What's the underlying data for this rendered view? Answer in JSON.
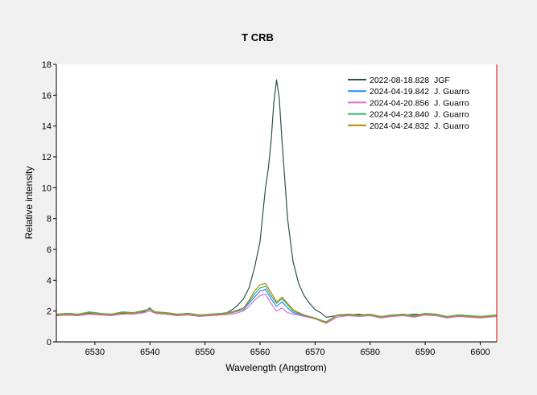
{
  "chart_data": {
    "type": "line",
    "title": "T CRB",
    "xlabel": "Wavelength (Angstrom)",
    "ylabel": "Relative intensity",
    "xlim": [
      6523,
      6603
    ],
    "ylim": [
      0,
      18
    ],
    "xticks": [
      6530,
      6540,
      6550,
      6560,
      6570,
      6580,
      6590,
      6600
    ],
    "yticks": [
      0,
      2,
      4,
      6,
      8,
      10,
      12,
      14,
      16,
      18
    ],
    "grid": false,
    "legend_position": "top-right",
    "series": [
      {
        "name": "2022-08-18.828  JGF",
        "color": "#2f4f4f",
        "x": [
          6523,
          6525,
          6527,
          6529,
          6531,
          6533,
          6535,
          6537,
          6539,
          6540,
          6541,
          6543,
          6545,
          6547,
          6549,
          6551,
          6553,
          6554,
          6555,
          6556,
          6557,
          6558,
          6559,
          6560,
          6560.5,
          6561,
          6561.5,
          6562,
          6562.5,
          6563,
          6563.5,
          6564,
          6564.5,
          6565,
          6566,
          6567,
          6568,
          6569,
          6570,
          6571,
          6572,
          6574,
          6576,
          6578,
          6580,
          6582,
          6584,
          6586,
          6588,
          6590,
          6592,
          6594,
          6596,
          6598,
          6600,
          6603
        ],
        "y": [
          1.7,
          1.75,
          1.7,
          1.85,
          1.75,
          1.8,
          1.85,
          1.9,
          1.95,
          2.2,
          1.85,
          1.8,
          1.7,
          1.8,
          1.75,
          1.7,
          1.8,
          1.9,
          2.1,
          2.4,
          2.8,
          3.5,
          4.8,
          6.5,
          8.3,
          10.0,
          11.2,
          13.0,
          15.5,
          17.0,
          15.8,
          13.0,
          10.5,
          8.0,
          5.2,
          3.8,
          3.0,
          2.5,
          2.1,
          1.9,
          1.6,
          1.7,
          1.75,
          1.8,
          1.7,
          1.6,
          1.75,
          1.7,
          1.8,
          1.75,
          1.7,
          1.6,
          1.75,
          1.7,
          1.6,
          1.65
        ]
      },
      {
        "name": "2024-04-19.842  J. Guarro",
        "color": "#1e90ff",
        "x": [
          6523,
          6525,
          6527,
          6529,
          6531,
          6533,
          6535,
          6537,
          6539,
          6540,
          6541,
          6543,
          6545,
          6547,
          6549,
          6551,
          6553,
          6555,
          6557,
          6558,
          6559,
          6560,
          6561,
          6562,
          6563,
          6564,
          6565,
          6566,
          6567,
          6568,
          6570,
          6572,
          6574,
          6576,
          6578,
          6580,
          6582,
          6584,
          6586,
          6588,
          6590,
          6592,
          6594,
          6596,
          6598,
          6600,
          6603
        ],
        "y": [
          1.75,
          1.8,
          1.75,
          1.9,
          1.8,
          1.75,
          1.9,
          1.85,
          2.0,
          2.1,
          1.9,
          1.85,
          1.75,
          1.8,
          1.7,
          1.75,
          1.8,
          1.9,
          2.1,
          2.5,
          2.9,
          3.3,
          3.4,
          2.8,
          2.3,
          2.6,
          2.2,
          1.9,
          1.8,
          1.7,
          1.5,
          1.3,
          1.7,
          1.75,
          1.7,
          1.75,
          1.6,
          1.7,
          1.75,
          1.65,
          1.8,
          1.75,
          1.6,
          1.7,
          1.65,
          1.6,
          1.7
        ]
      },
      {
        "name": "2024-04-20.856  J. Guarro",
        "color": "#da70d6",
        "x": [
          6523,
          6525,
          6527,
          6529,
          6531,
          6533,
          6535,
          6537,
          6539,
          6540,
          6541,
          6543,
          6545,
          6547,
          6549,
          6551,
          6553,
          6555,
          6557,
          6558,
          6559,
          6560,
          6561,
          6562,
          6563,
          6564,
          6565,
          6566,
          6567,
          6568,
          6570,
          6572,
          6574,
          6576,
          6578,
          6580,
          6582,
          6584,
          6586,
          6588,
          6590,
          6592,
          6594,
          6596,
          6598,
          6600,
          6603
        ],
        "y": [
          1.7,
          1.75,
          1.7,
          1.8,
          1.75,
          1.7,
          1.8,
          1.8,
          1.9,
          2.0,
          1.85,
          1.8,
          1.7,
          1.75,
          1.65,
          1.7,
          1.75,
          1.8,
          2.0,
          2.3,
          2.7,
          3.0,
          3.1,
          2.5,
          2.0,
          2.2,
          1.9,
          1.8,
          1.75,
          1.65,
          1.5,
          1.2,
          1.6,
          1.7,
          1.65,
          1.7,
          1.55,
          1.65,
          1.7,
          1.6,
          1.75,
          1.7,
          1.55,
          1.65,
          1.6,
          1.55,
          1.65
        ]
      },
      {
        "name": "2024-04-23.840  J. Guarro",
        "color": "#3cb371",
        "x": [
          6523,
          6525,
          6527,
          6529,
          6531,
          6533,
          6535,
          6537,
          6539,
          6540,
          6541,
          6543,
          6545,
          6547,
          6549,
          6551,
          6553,
          6555,
          6557,
          6558,
          6559,
          6560,
          6561,
          6562,
          6563,
          6564,
          6565,
          6566,
          6567,
          6568,
          6570,
          6572,
          6574,
          6576,
          6578,
          6580,
          6582,
          6584,
          6586,
          6588,
          6590,
          6592,
          6594,
          6596,
          6598,
          6600,
          6603
        ],
        "y": [
          1.8,
          1.85,
          1.8,
          1.95,
          1.85,
          1.8,
          1.95,
          1.9,
          2.05,
          2.15,
          1.95,
          1.9,
          1.8,
          1.85,
          1.75,
          1.8,
          1.85,
          1.95,
          2.2,
          2.6,
          3.1,
          3.5,
          3.6,
          3.0,
          2.5,
          2.8,
          2.4,
          2.0,
          1.85,
          1.75,
          1.55,
          1.3,
          1.75,
          1.8,
          1.75,
          1.8,
          1.65,
          1.75,
          1.8,
          1.7,
          1.85,
          1.8,
          1.65,
          1.75,
          1.7,
          1.65,
          1.75
        ]
      },
      {
        "name": "2024-04-24.832  J. Guarro",
        "color": "#b8860b",
        "x": [
          6523,
          6525,
          6527,
          6529,
          6531,
          6533,
          6535,
          6537,
          6539,
          6540,
          6541,
          6543,
          6545,
          6547,
          6549,
          6551,
          6553,
          6555,
          6557,
          6558,
          6559,
          6560,
          6561,
          6562,
          6563,
          6564,
          6565,
          6566,
          6567,
          6568,
          6570,
          6572,
          6574,
          6576,
          6578,
          6580,
          6582,
          6584,
          6586,
          6588,
          6590,
          6592,
          6594,
          6596,
          6598,
          6600,
          6603
        ],
        "y": [
          1.75,
          1.8,
          1.75,
          1.9,
          1.8,
          1.75,
          1.9,
          1.85,
          2.0,
          2.1,
          1.9,
          1.85,
          1.75,
          1.8,
          1.7,
          1.75,
          1.8,
          1.9,
          2.2,
          2.7,
          3.3,
          3.7,
          3.8,
          3.2,
          2.6,
          2.9,
          2.5,
          2.1,
          1.9,
          1.75,
          1.5,
          1.25,
          1.7,
          1.75,
          1.7,
          1.75,
          1.6,
          1.7,
          1.75,
          1.65,
          1.8,
          1.75,
          1.6,
          1.7,
          1.65,
          1.6,
          1.7
        ]
      }
    ]
  }
}
